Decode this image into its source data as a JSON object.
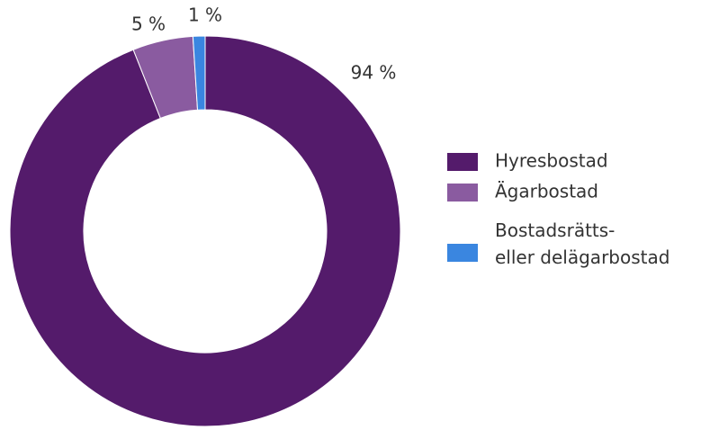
{
  "chart_data": {
    "type": "donut",
    "categories": [
      "Hyresbostad",
      "Ägarbostad",
      "Bostadsrätts- eller delägarbostad"
    ],
    "values": [
      94,
      5,
      1
    ],
    "value_labels": [
      "94 %",
      "5 %",
      "1 %"
    ],
    "colors": [
      "#541b6b",
      "#8a5ba0",
      "#3a86e0"
    ],
    "legend": "right"
  }
}
